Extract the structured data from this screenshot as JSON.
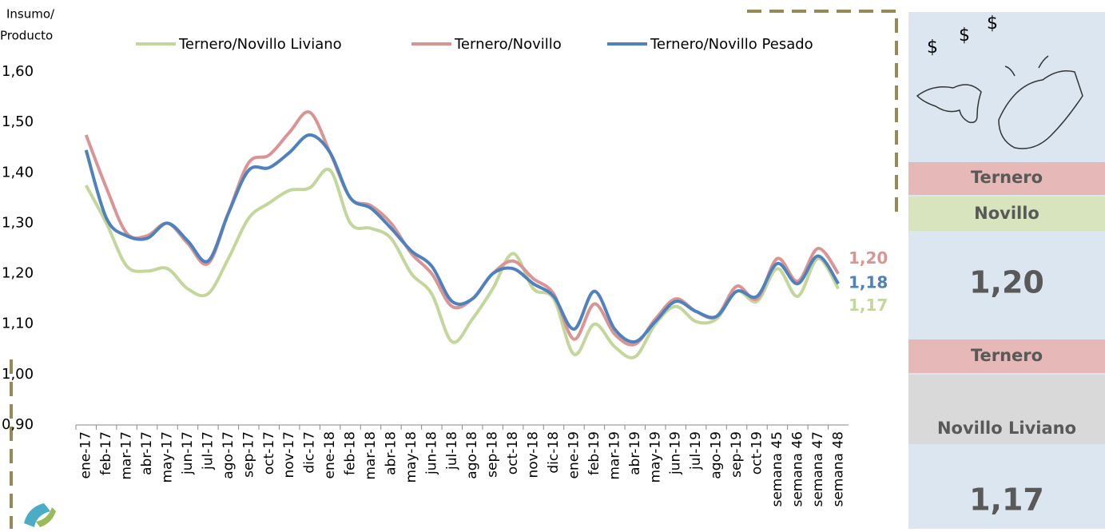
{
  "chart_data": {
    "type": "line",
    "y_label_lines": [
      "Insumo/",
      "Producto"
    ],
    "categories": [
      "ene-17",
      "feb-17",
      "mar-17",
      "abr-17",
      "may-17",
      "jun-17",
      "jul-17",
      "ago-17",
      "sep-17",
      "oct-17",
      "nov-17",
      "dic-17",
      "ene-18",
      "feb-18",
      "mar-18",
      "abr-18",
      "may-18",
      "jun-18",
      "jul-18",
      "ago-18",
      "sep-18",
      "oct-18",
      "nov-18",
      "dic-18",
      "ene-19",
      "feb-19",
      "mar-19",
      "abr-19",
      "may-19",
      "jun-19",
      "jul-19",
      "ago-19",
      "sep-19",
      "oct-19",
      "semana 45",
      "semana 46",
      "semana 47",
      "semana 48"
    ],
    "series": [
      {
        "name": "Ternero/Novillo Liviano",
        "color": "#c3d69b",
        "values": [
          1.375,
          1.3,
          1.215,
          1.205,
          1.21,
          1.17,
          1.16,
          1.23,
          1.31,
          1.34,
          1.365,
          1.37,
          1.405,
          1.3,
          1.29,
          1.27,
          1.2,
          1.16,
          1.065,
          1.11,
          1.17,
          1.24,
          1.17,
          1.15,
          1.04,
          1.1,
          1.055,
          1.035,
          1.1,
          1.135,
          1.105,
          1.11,
          1.165,
          1.145,
          1.21,
          1.155,
          1.23,
          1.17
        ],
        "value_labels": [
          null,
          null,
          null,
          null,
          null,
          null,
          null,
          null,
          null,
          null,
          null,
          null,
          null,
          null,
          null,
          null,
          null,
          null,
          null,
          null,
          null,
          null,
          null,
          null,
          null,
          null,
          null,
          null,
          null,
          null,
          null,
          null,
          null,
          null,
          null,
          null,
          null,
          "1,17"
        ]
      },
      {
        "name": "Ternero/Novillo",
        "color": "#d99594",
        "values": [
          1.475,
          1.37,
          1.28,
          1.275,
          1.3,
          1.26,
          1.22,
          1.32,
          1.42,
          1.435,
          1.48,
          1.52,
          1.44,
          1.35,
          1.335,
          1.3,
          1.24,
          1.2,
          1.135,
          1.15,
          1.2,
          1.225,
          1.19,
          1.16,
          1.07,
          1.14,
          1.08,
          1.06,
          1.11,
          1.15,
          1.125,
          1.115,
          1.175,
          1.15,
          1.23,
          1.185,
          1.25,
          1.2
        ],
        "value_labels": [
          null,
          null,
          null,
          null,
          null,
          null,
          null,
          null,
          null,
          null,
          null,
          null,
          null,
          null,
          null,
          null,
          null,
          null,
          null,
          null,
          null,
          null,
          null,
          null,
          null,
          null,
          null,
          null,
          null,
          null,
          null,
          null,
          null,
          null,
          null,
          null,
          null,
          "1,20"
        ]
      },
      {
        "name": "Ternero/Novillo Pesado",
        "color": "#4f81bd",
        "values": [
          1.445,
          1.31,
          1.275,
          1.27,
          1.3,
          1.265,
          1.225,
          1.32,
          1.405,
          1.41,
          1.44,
          1.475,
          1.44,
          1.35,
          1.33,
          1.29,
          1.245,
          1.215,
          1.145,
          1.15,
          1.2,
          1.21,
          1.18,
          1.155,
          1.09,
          1.165,
          1.09,
          1.065,
          1.105,
          1.145,
          1.125,
          1.115,
          1.165,
          1.155,
          1.22,
          1.18,
          1.235,
          1.18
        ],
        "value_labels": [
          null,
          null,
          null,
          null,
          null,
          null,
          null,
          null,
          null,
          null,
          null,
          null,
          null,
          null,
          null,
          null,
          null,
          null,
          null,
          null,
          null,
          null,
          null,
          null,
          null,
          null,
          null,
          null,
          null,
          null,
          null,
          null,
          null,
          null,
          null,
          null,
          null,
          "1,18"
        ]
      }
    ],
    "ylim": [
      0.9,
      1.6
    ],
    "yticks": [
      {
        "value": 0.9,
        "label": "0,90"
      },
      {
        "value": 1.0,
        "label": "1,00"
      },
      {
        "value": 1.1,
        "label": "1,10"
      },
      {
        "value": 1.2,
        "label": "1,20"
      },
      {
        "value": 1.3,
        "label": "1,30"
      },
      {
        "value": 1.4,
        "label": "1,40"
      },
      {
        "value": 1.5,
        "label": "1,50"
      },
      {
        "value": 1.6,
        "label": "1,60"
      }
    ],
    "grid": false,
    "legend": "top"
  },
  "panel": {
    "first_top": "Ternero",
    "first_bottom": "Novillo",
    "first_value": "1,20",
    "second_top": "Ternero",
    "second_bottom": "Novillo Liviano",
    "second_value": "1,17"
  }
}
